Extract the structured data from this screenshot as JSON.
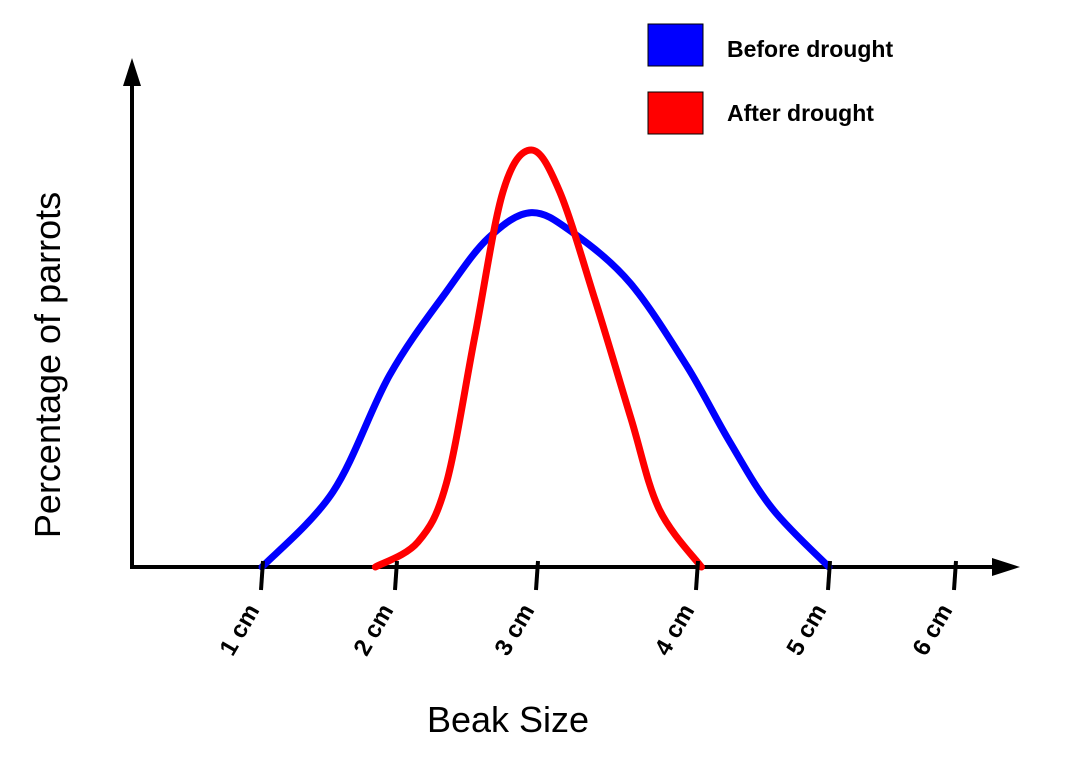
{
  "chart_data": {
    "type": "line",
    "title": "",
    "xlabel": "Beak Size",
    "ylabel": "Percentage of parrots",
    "x_ticks": [
      "1 cm",
      "2 cm",
      "3 cm",
      "4 cm",
      "5 cm",
      "6 cm"
    ],
    "x_tick_values": [
      1,
      2,
      3,
      4,
      5,
      6
    ],
    "xlim": [
      0,
      6.5
    ],
    "ylim": [
      0,
      1.0
    ],
    "y_ticks_shown": false,
    "grid": false,
    "legend_position": "top-right",
    "series": [
      {
        "name": "Before drought",
        "color": "#0000ff",
        "points": [
          [
            1.0,
            0.0
          ],
          [
            1.5,
            0.18
          ],
          [
            1.9,
            0.46
          ],
          [
            2.3,
            0.66
          ],
          [
            2.6,
            0.79
          ],
          [
            2.9,
            0.85
          ],
          [
            3.2,
            0.8
          ],
          [
            3.6,
            0.68
          ],
          [
            4.0,
            0.48
          ],
          [
            4.3,
            0.3
          ],
          [
            4.6,
            0.14
          ],
          [
            5.0,
            0.0
          ]
        ]
      },
      {
        "name": "After drought",
        "color": "#ff0000",
        "points": [
          [
            1.8,
            0.0
          ],
          [
            2.1,
            0.06
          ],
          [
            2.3,
            0.2
          ],
          [
            2.5,
            0.55
          ],
          [
            2.7,
            0.9
          ],
          [
            2.9,
            1.0
          ],
          [
            3.1,
            0.9
          ],
          [
            3.35,
            0.64
          ],
          [
            3.6,
            0.36
          ],
          [
            3.8,
            0.14
          ],
          [
            4.1,
            0.0
          ]
        ]
      }
    ]
  }
}
